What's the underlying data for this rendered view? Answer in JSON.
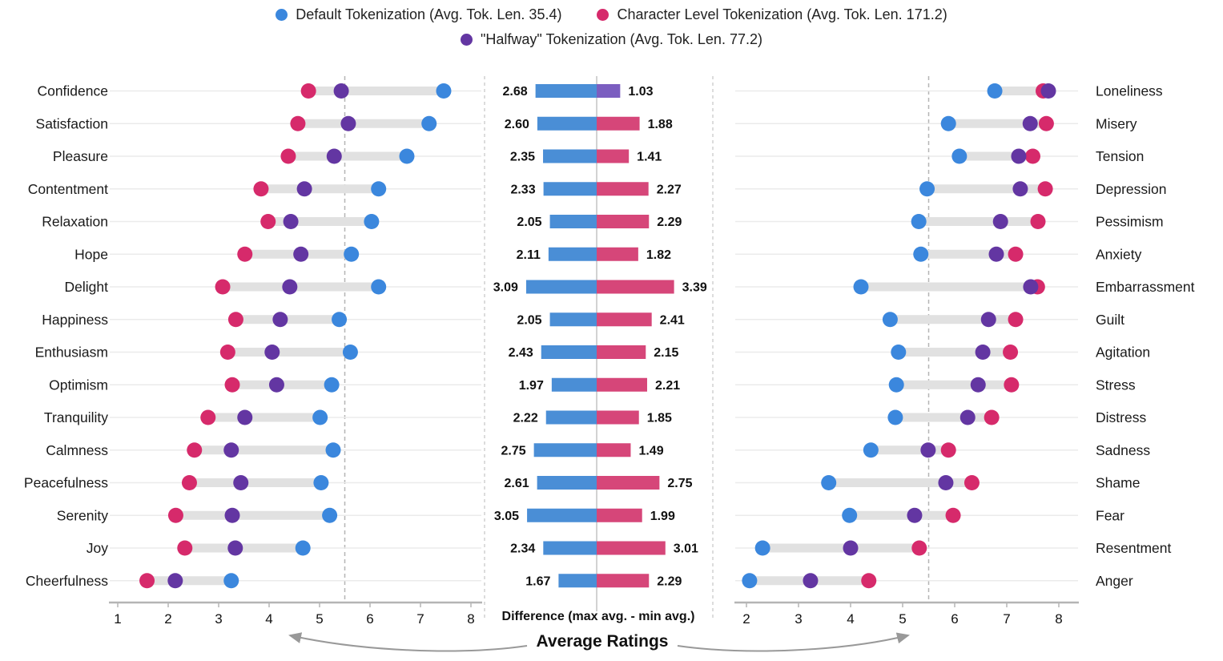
{
  "chart_data": {
    "type": "dumbbell+diverging-bar",
    "title": "",
    "legend": [
      {
        "id": "default",
        "label": "Default Tokenization (Avg. Tok. Len. 35.4)",
        "color": "#3b87dd",
        "bar_color": "#4a8ed6"
      },
      {
        "id": "character",
        "label": "Character Level Tokenization (Avg. Tok. Len. 171.2)",
        "color": "#d62a6b",
        "bar_color": "#d64679"
      },
      {
        "id": "halfway",
        "label": "\"Halfway\" Tokenization (Avg. Tok. Len. 77.2)",
        "color": "#6336a2",
        "bar_color": "#7b5ec0"
      }
    ],
    "legend_layout": [
      [
        "default",
        "character"
      ],
      [
        "halfway"
      ]
    ],
    "axes": {
      "left_ticks": [
        1,
        2,
        3,
        4,
        5,
        6,
        7,
        8
      ],
      "right_ticks": [
        2,
        3,
        4,
        5,
        6,
        7,
        8
      ],
      "reference_line_value": 5.5,
      "grid": true,
      "legend_position": "top"
    },
    "bottom": {
      "diff_label": "Difference (max avg. - min avg.)",
      "avg_label": "Average Ratings"
    },
    "rows": [
      {
        "pos_label": "Confidence",
        "neg_label": "Loneliness",
        "pos": {
          "character": 4.78,
          "halfway": 5.43,
          "default": 7.46
        },
        "neg": {
          "default": 6.77,
          "character": 7.7,
          "halfway": 7.8
        },
        "diff_pos": "2.68",
        "diff_neg": "1.03",
        "neg_bar": "halfway"
      },
      {
        "pos_label": "Satisfaction",
        "neg_label": "Misery",
        "pos": {
          "character": 4.57,
          "halfway": 5.57,
          "default": 7.17
        },
        "neg": {
          "default": 5.88,
          "halfway": 7.45,
          "character": 7.76
        },
        "diff_pos": "2.60",
        "diff_neg": "1.88",
        "neg_bar": "character"
      },
      {
        "pos_label": "Pleasure",
        "neg_label": "Tension",
        "pos": {
          "character": 4.38,
          "halfway": 5.29,
          "default": 6.73
        },
        "neg": {
          "default": 6.09,
          "halfway": 7.23,
          "character": 7.5
        },
        "diff_pos": "2.35",
        "diff_neg": "1.41",
        "neg_bar": "character"
      },
      {
        "pos_label": "Contentment",
        "neg_label": "Depression",
        "pos": {
          "character": 3.84,
          "halfway": 4.7,
          "default": 6.17
        },
        "neg": {
          "default": 5.47,
          "halfway": 7.26,
          "character": 7.74
        },
        "diff_pos": "2.33",
        "diff_neg": "2.27",
        "neg_bar": "character"
      },
      {
        "pos_label": "Relaxation",
        "neg_label": "Pessimism",
        "pos": {
          "character": 3.98,
          "halfway": 4.43,
          "default": 6.03
        },
        "neg": {
          "default": 5.31,
          "halfway": 6.88,
          "character": 7.6
        },
        "diff_pos": "2.05",
        "diff_neg": "2.29",
        "neg_bar": "character"
      },
      {
        "pos_label": "Hope",
        "neg_label": "Anxiety",
        "pos": {
          "character": 3.52,
          "halfway": 4.63,
          "default": 5.63
        },
        "neg": {
          "default": 5.35,
          "halfway": 6.8,
          "character": 7.17
        },
        "diff_pos": "2.11",
        "diff_neg": "1.82",
        "neg_bar": "character"
      },
      {
        "pos_label": "Delight",
        "neg_label": "Embarrassment",
        "pos": {
          "character": 3.08,
          "halfway": 4.41,
          "default": 6.17
        },
        "neg": {
          "default": 4.2,
          "halfway": 7.46,
          "character": 7.59
        },
        "diff_pos": "3.09",
        "diff_neg": "3.39",
        "neg_bar": "character"
      },
      {
        "pos_label": "Happiness",
        "neg_label": "Guilt",
        "pos": {
          "character": 3.34,
          "halfway": 4.22,
          "default": 5.39
        },
        "neg": {
          "default": 4.76,
          "halfway": 6.65,
          "character": 7.17
        },
        "diff_pos": "2.05",
        "diff_neg": "2.41",
        "neg_bar": "character"
      },
      {
        "pos_label": "Enthusiasm",
        "neg_label": "Agitation",
        "pos": {
          "character": 3.18,
          "halfway": 4.06,
          "default": 5.61
        },
        "neg": {
          "default": 4.92,
          "halfway": 6.54,
          "character": 7.07
        },
        "diff_pos": "2.43",
        "diff_neg": "2.15",
        "neg_bar": "character"
      },
      {
        "pos_label": "Optimism",
        "neg_label": "Stress",
        "pos": {
          "character": 3.27,
          "halfway": 4.15,
          "default": 5.24
        },
        "neg": {
          "default": 4.88,
          "halfway": 6.45,
          "character": 7.09
        },
        "diff_pos": "1.97",
        "diff_neg": "2.21",
        "neg_bar": "character"
      },
      {
        "pos_label": "Tranquility",
        "neg_label": "Distress",
        "pos": {
          "character": 2.79,
          "halfway": 3.52,
          "default": 5.01
        },
        "neg": {
          "default": 4.86,
          "halfway": 6.25,
          "character": 6.71
        },
        "diff_pos": "2.22",
        "diff_neg": "1.85",
        "neg_bar": "character"
      },
      {
        "pos_label": "Calmness",
        "neg_label": "Sadness",
        "pos": {
          "character": 2.52,
          "halfway": 3.25,
          "default": 5.27
        },
        "neg": {
          "default": 4.39,
          "halfway": 5.49,
          "character": 5.88
        },
        "diff_pos": "2.75",
        "diff_neg": "1.49",
        "neg_bar": "character"
      },
      {
        "pos_label": "Peacefulness",
        "neg_label": "Shame",
        "pos": {
          "character": 2.42,
          "halfway": 3.44,
          "default": 5.03
        },
        "neg": {
          "default": 3.58,
          "halfway": 5.83,
          "character": 6.33
        },
        "diff_pos": "2.61",
        "diff_neg": "2.75",
        "neg_bar": "character"
      },
      {
        "pos_label": "Serenity",
        "neg_label": "Fear",
        "pos": {
          "character": 2.15,
          "halfway": 3.27,
          "default": 5.2
        },
        "neg": {
          "default": 3.98,
          "halfway": 5.23,
          "character": 5.97
        },
        "diff_pos": "3.05",
        "diff_neg": "1.99",
        "neg_bar": "character"
      },
      {
        "pos_label": "Joy",
        "neg_label": "Resentment",
        "pos": {
          "character": 2.33,
          "halfway": 3.33,
          "default": 4.67
        },
        "neg": {
          "default": 2.31,
          "halfway": 4.0,
          "character": 5.32
        },
        "diff_pos": "2.34",
        "diff_neg": "3.01",
        "neg_bar": "character"
      },
      {
        "pos_label": "Cheerfulness",
        "neg_label": "Anger",
        "pos": {
          "character": 1.58,
          "halfway": 2.14,
          "default": 3.25
        },
        "neg": {
          "default": 2.06,
          "halfway": 3.23,
          "character": 4.35
        },
        "diff_pos": "1.67",
        "diff_neg": "2.29",
        "neg_bar": "character"
      }
    ],
    "style_colors": {
      "band": "#e1e1e1",
      "gridline": "#ebebeb",
      "axis": "#b5b5b5",
      "reference_dash": "#b5b5b5",
      "panel_border_dash": "#c4c4c4",
      "center_line": "#d2d2d2",
      "text": "#1a1a1a",
      "arrow": "#999999"
    }
  }
}
